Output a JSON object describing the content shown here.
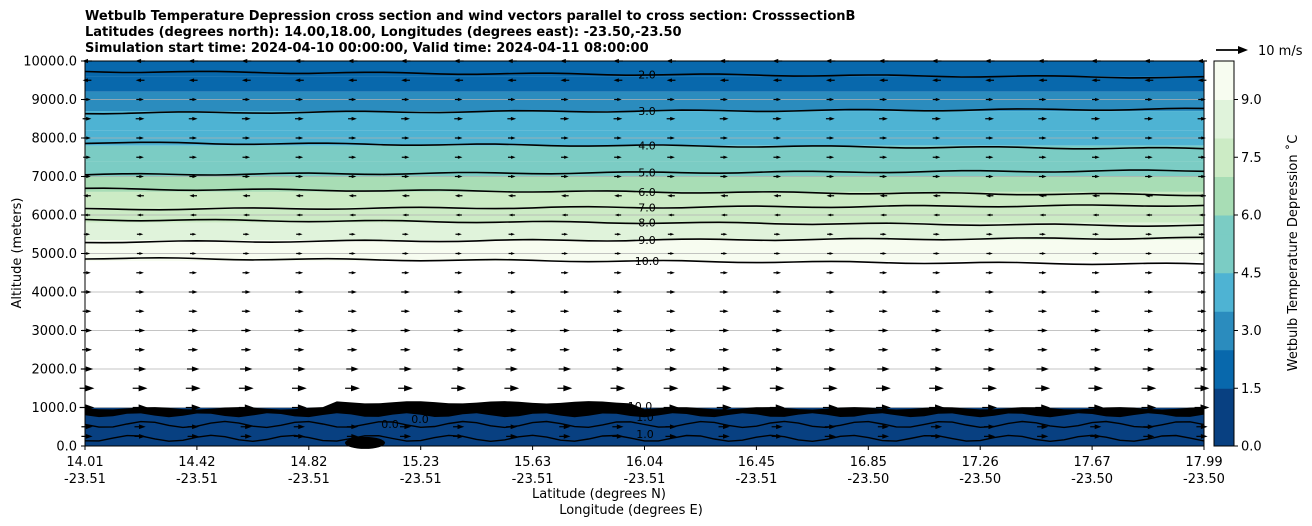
{
  "chart_data": {
    "type": "contour",
    "title_lines": [
      "Wetbulb Temperature Depression cross section and wind vectors parallel to cross section: CrosssectionB",
      "Latitudes (degrees north): 14.00,18.00, Longitudes (degrees east): -23.50,-23.50",
      "Simulation start time: 2024-04-10 00:00:00, Valid time: 2024-04-11 08:00:00"
    ],
    "xlabel": "Latitude (degrees N)",
    "xlabel2": "Longitude (degrees E)",
    "ylabel": "Altitude (meters)",
    "x_ticks": [
      {
        "lat": "14.01",
        "lon": "-23.51"
      },
      {
        "lat": "14.42",
        "lon": "-23.51"
      },
      {
        "lat": "14.82",
        "lon": "-23.51"
      },
      {
        "lat": "15.23",
        "lon": "-23.51"
      },
      {
        "lat": "15.63",
        "lon": "-23.51"
      },
      {
        "lat": "16.04",
        "lon": "-23.51"
      },
      {
        "lat": "16.45",
        "lon": "-23.51"
      },
      {
        "lat": "16.85",
        "lon": "-23.50"
      },
      {
        "lat": "17.26",
        "lon": "-23.50"
      },
      {
        "lat": "17.67",
        "lon": "-23.50"
      },
      {
        "lat": "17.99",
        "lon": "-23.50"
      }
    ],
    "y_ticks": [
      "0.0",
      "1000.0",
      "2000.0",
      "3000.0",
      "4000.0",
      "5000.0",
      "6000.0",
      "7000.0",
      "8000.0",
      "9000.0",
      "10000.0"
    ],
    "ylim": [
      0,
      10000
    ],
    "grid": "horizontal",
    "colorbar": {
      "label": "Wetbulb Temperature Depression ˚C",
      "ticks": [
        "0.0",
        "1.5",
        "3.0",
        "4.5",
        "6.0",
        "7.5",
        "9.0"
      ],
      "range": [
        0,
        10
      ],
      "colors": [
        "#084081",
        "#0868ac",
        "#2b8cbe",
        "#4eb3d3",
        "#7bccc4",
        "#a8ddb5",
        "#ccebc5",
        "#e0f3db",
        "#f7fcf0"
      ]
    },
    "wind_key": "10 m/s",
    "contour_levels": [
      {
        "label": "2.0",
        "altitude": 9650
      },
      {
        "label": "3.0",
        "altitude": 8700
      },
      {
        "label": "4.0",
        "altitude": 7800
      },
      {
        "label": "5.0",
        "altitude": 7100
      },
      {
        "label": "6.0",
        "altitude": 6600
      },
      {
        "label": "7.0",
        "altitude": 6200
      },
      {
        "label": "8.0",
        "altitude": 5800
      },
      {
        "label": "9.0",
        "altitude": 5350
      },
      {
        "label": "10.0",
        "altitude": 4800
      }
    ],
    "low_contour_labels": [
      "10.0",
      "0.0",
      "0.0",
      "1.0",
      "1.0"
    ],
    "bands": [
      {
        "from": 9600,
        "to": 10000,
        "value": 1.5
      },
      {
        "from": 9200,
        "to": 9600,
        "value": 2.2
      },
      {
        "from": 8700,
        "to": 9200,
        "value": 2.8
      },
      {
        "from": 8200,
        "to": 8700,
        "value": 3.4
      },
      {
        "from": 7800,
        "to": 8200,
        "value": 4.0
      },
      {
        "from": 7400,
        "to": 7800,
        "value": 4.7
      },
      {
        "from": 7000,
        "to": 7400,
        "value": 5.3
      },
      {
        "from": 6600,
        "to": 7000,
        "value": 6.0
      },
      {
        "from": 6200,
        "to": 6600,
        "value": 6.8
      },
      {
        "from": 5800,
        "to": 6200,
        "value": 7.5
      },
      {
        "from": 5350,
        "to": 5800,
        "value": 8.5
      },
      {
        "from": 4800,
        "to": 5350,
        "value": 9.5
      },
      {
        "from": 1000,
        "to": 4800,
        "value": 11.0
      },
      {
        "from": 0,
        "to": 1000,
        "value": 0.2
      }
    ],
    "wind_rows": [
      {
        "altitude": 250,
        "direction": 1,
        "strength": 0.6
      },
      {
        "altitude": 500,
        "direction": 1,
        "strength": 0.6
      },
      {
        "altitude": 1000,
        "direction": 1,
        "strength": 0.9
      },
      {
        "altitude": 1500,
        "direction": 1,
        "strength": 0.9
      },
      {
        "altitude": 2000,
        "direction": 1,
        "strength": 0.7
      },
      {
        "altitude": 2500,
        "direction": 1,
        "strength": 0.5
      },
      {
        "altitude": 3000,
        "direction": 1,
        "strength": 0.5
      },
      {
        "altitude": 3500,
        "direction": 1,
        "strength": 0.4
      },
      {
        "altitude": 4000,
        "direction": 1,
        "strength": 0.4
      },
      {
        "altitude": 4500,
        "direction": 1,
        "strength": 0.3
      },
      {
        "altitude": 5000,
        "direction": 1,
        "strength": 0.2
      },
      {
        "altitude": 5500,
        "direction": 1,
        "strength": 0.2
      },
      {
        "altitude": 6000,
        "direction": -1,
        "strength": 0.2
      },
      {
        "altitude": 6500,
        "direction": -1,
        "strength": 0.3
      },
      {
        "altitude": 7000,
        "direction": 1,
        "strength": 0.3
      },
      {
        "altitude": 7500,
        "direction": 1,
        "strength": 0.3
      },
      {
        "altitude": 8000,
        "direction": 1,
        "strength": 0.3
      },
      {
        "altitude": 8500,
        "direction": 1,
        "strength": 0.4
      },
      {
        "altitude": 9000,
        "direction": 1,
        "strength": 0.3
      },
      {
        "altitude": 9500,
        "direction": -1,
        "strength": 0.4
      },
      {
        "altitude": 10000,
        "direction": -1,
        "strength": 0.5
      }
    ]
  }
}
